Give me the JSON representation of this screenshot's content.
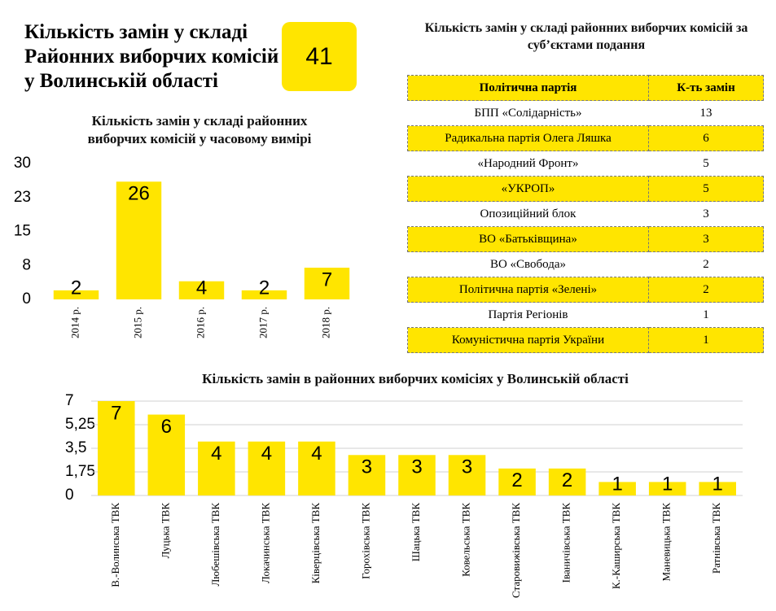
{
  "header": {
    "title": "Кількість замін у складі Районних виборчих комісій у Волинській області",
    "total": "41"
  },
  "chart_data": [
    {
      "type": "bar",
      "title": "Кількість замін у складі районних виборчих комісій у часовому вимірі",
      "categories": [
        "2014 р.",
        "2015 р.",
        "2016 р.",
        "2017 р.",
        "2018 р."
      ],
      "values": [
        2,
        26,
        4,
        2,
        7
      ],
      "color": "#ffe500",
      "ylim": [
        0,
        30
      ],
      "yticks": [
        0,
        {
          "value": 7.5,
          "label": "8"
        },
        15,
        {
          "value": 22.5,
          "label": "23"
        },
        30
      ],
      "grid": false
    },
    {
      "type": "bar",
      "title": "Кількість замін в районних виборчих комісіях у Волинській області",
      "categories": [
        "В.-Волинська ТВК",
        "Луцька ТВК",
        "Любешівська ТВК",
        "Локачинська ТВК",
        "Ківерцівська ТВК",
        "Горохівська ТВК",
        "Шацька ТВК",
        "Ковельська ТВК",
        "Старовижівська ТВК",
        "Іваничівська ТВК",
        "К.-Каширська ТВК",
        "Маневицька ТВК",
        "Ратнівська ТВК"
      ],
      "values": [
        7,
        6,
        4,
        4,
        4,
        3,
        3,
        3,
        2,
        2,
        1,
        1,
        1
      ],
      "color": "#ffe500",
      "ylim": [
        0,
        7
      ],
      "yticks": [
        0,
        {
          "value": 1.75,
          "label": "1,75"
        },
        {
          "value": 3.5,
          "label": "3,5"
        },
        {
          "value": 5.25,
          "label": "5,25"
        },
        7
      ],
      "grid": true
    }
  ],
  "table": {
    "title": "Кількість замін у складі районних виборчих комісій за суб’єктами подання",
    "columns": [
      "Політична партія",
      "К-ть замін"
    ],
    "rows": [
      [
        "БПП «Солідарність»",
        "13"
      ],
      [
        "Радикальна партія Олега Ляшка",
        "6"
      ],
      [
        "«Народний Фронт»",
        "5"
      ],
      [
        "«УКРОП»",
        "5"
      ],
      [
        "Опозиційний блок",
        "3"
      ],
      [
        "ВО «Батьківщина»",
        "3"
      ],
      [
        "ВО «Свобода»",
        "2"
      ],
      [
        "Політична партія «Зелені»",
        "2"
      ],
      [
        "Партія Регіонів",
        "1"
      ],
      [
        "Комуністична партія України",
        "1"
      ]
    ]
  }
}
